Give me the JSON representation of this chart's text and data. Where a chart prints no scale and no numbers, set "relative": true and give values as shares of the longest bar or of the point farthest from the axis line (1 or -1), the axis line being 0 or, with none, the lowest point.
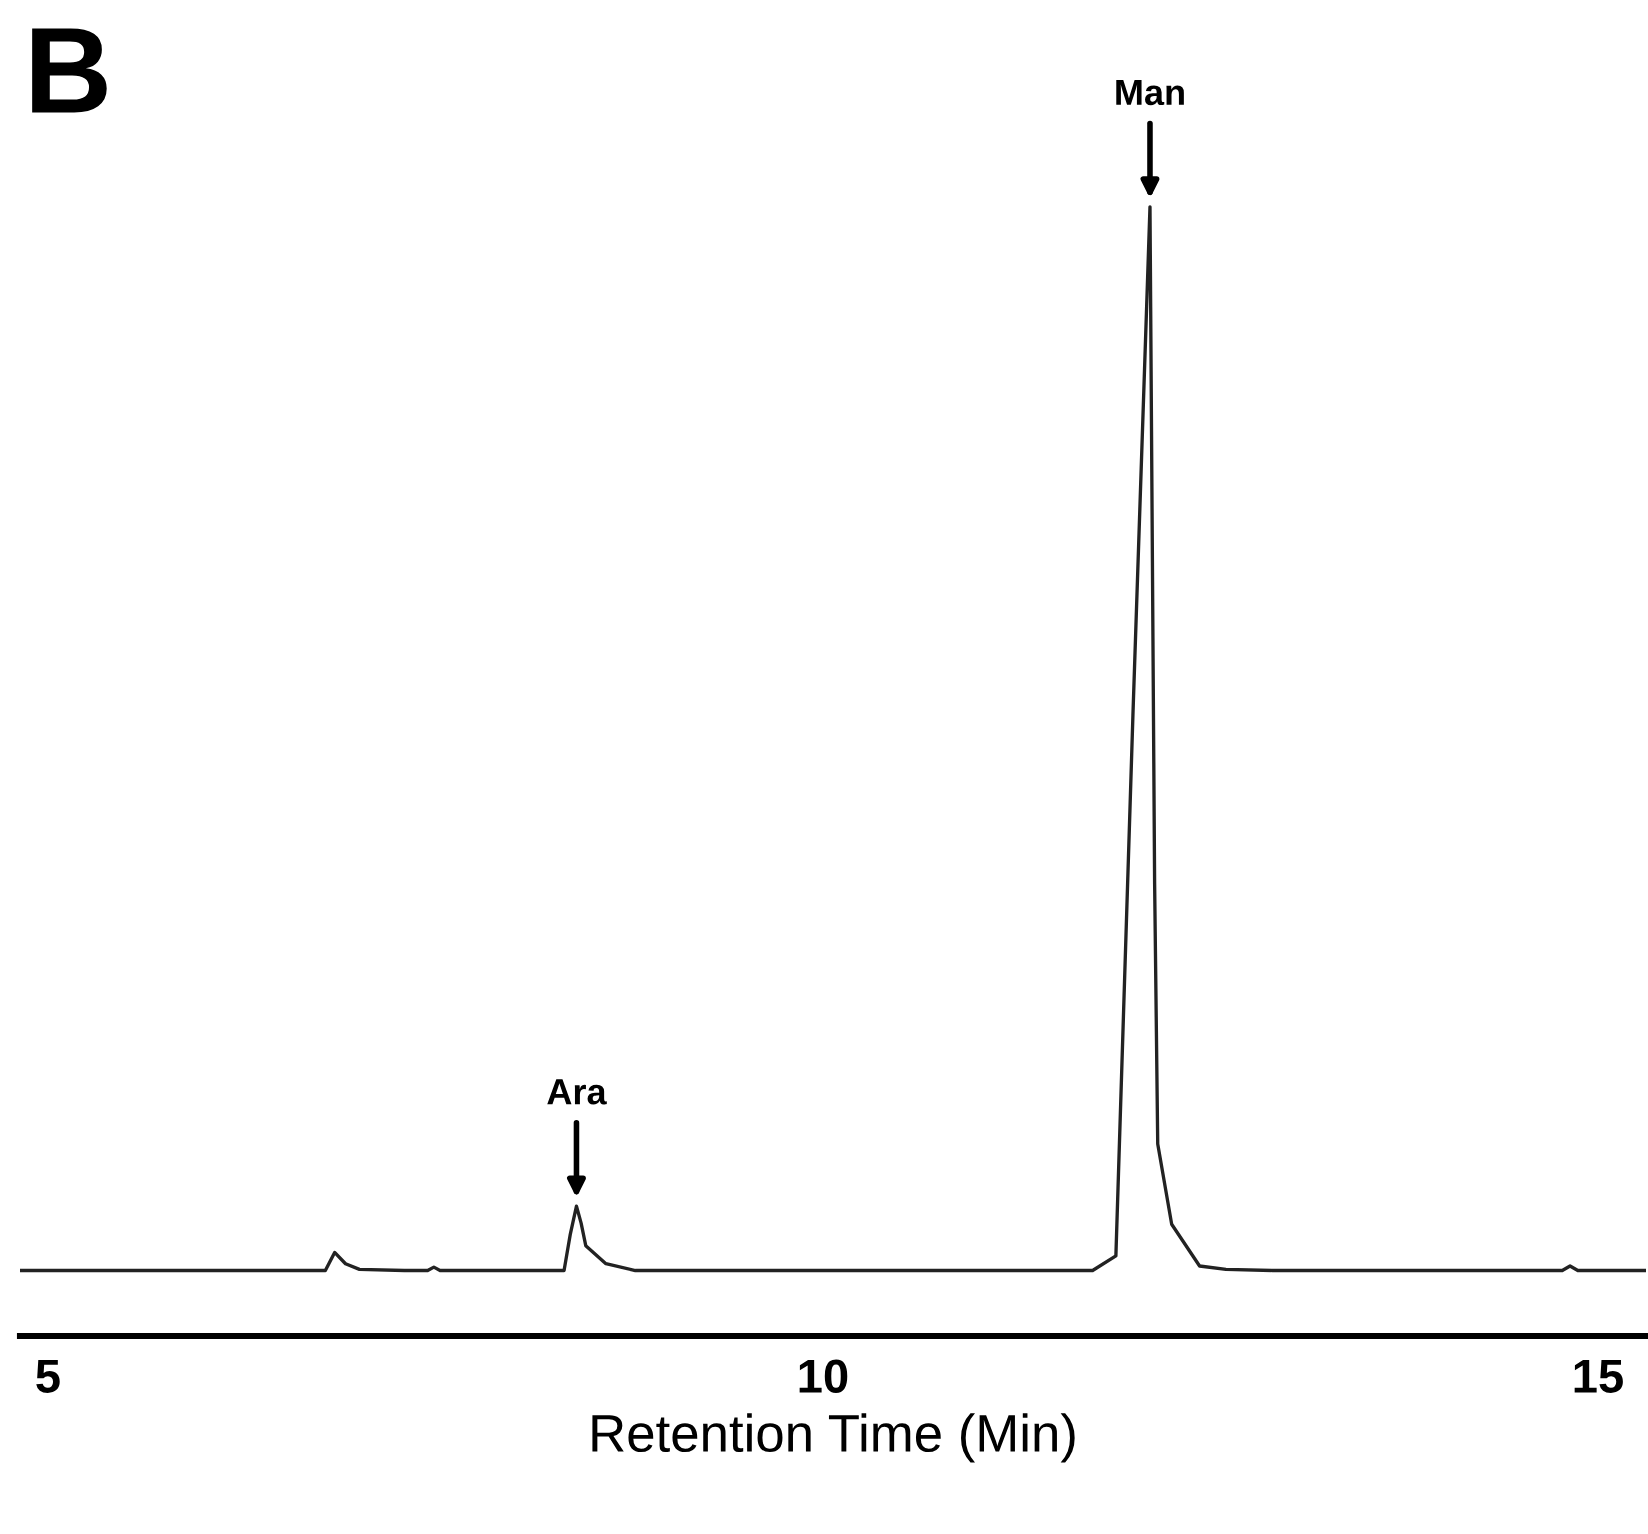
{
  "chart_data": {
    "type": "line",
    "title": "B",
    "xlabel": "Retention Time (Min)",
    "relative": true,
    "x": [
      4.82,
      5.5,
      6.0,
      6.5,
      6.79,
      6.85,
      6.92,
      7.01,
      7.3,
      7.45,
      7.49,
      7.53,
      8.0,
      8.33,
      8.37,
      8.41,
      8.44,
      8.47,
      8.6,
      8.79,
      9.5,
      10.0,
      10.5,
      11.0,
      11.5,
      11.74,
      11.89,
      12.0,
      12.11,
      12.14,
      12.16,
      12.25,
      12.43,
      12.6,
      12.9,
      13.5,
      14.0,
      14.5,
      14.77,
      14.82,
      14.87,
      15.31
    ],
    "series": [
      {
        "color": "#222222",
        "values": [
          0.058,
          0.058,
          0.058,
          0.058,
          0.058,
          0.074,
          0.064,
          0.059,
          0.058,
          0.058,
          0.061,
          0.058,
          0.058,
          0.058,
          0.09,
          0.115,
          0.1,
          0.08,
          0.064,
          0.058,
          0.058,
          0.058,
          0.058,
          0.058,
          0.058,
          0.058,
          0.071,
          0.55,
          1.0,
          0.4,
          0.17,
          0.099,
          0.062,
          0.059,
          0.058,
          0.058,
          0.058,
          0.058,
          0.058,
          0.062,
          0.058,
          0.058
        ]
      }
    ],
    "xlim": [
      4.82,
      15.31
    ],
    "xticks": [
      5,
      10,
      15
    ],
    "grid": false,
    "marker": "none",
    "line_style": "solid",
    "annotations": [
      {
        "text": "Ara",
        "x": 8.41,
        "y": 0.115
      },
      {
        "text": "Man",
        "x": 12.11,
        "y": 1.0
      }
    ]
  }
}
